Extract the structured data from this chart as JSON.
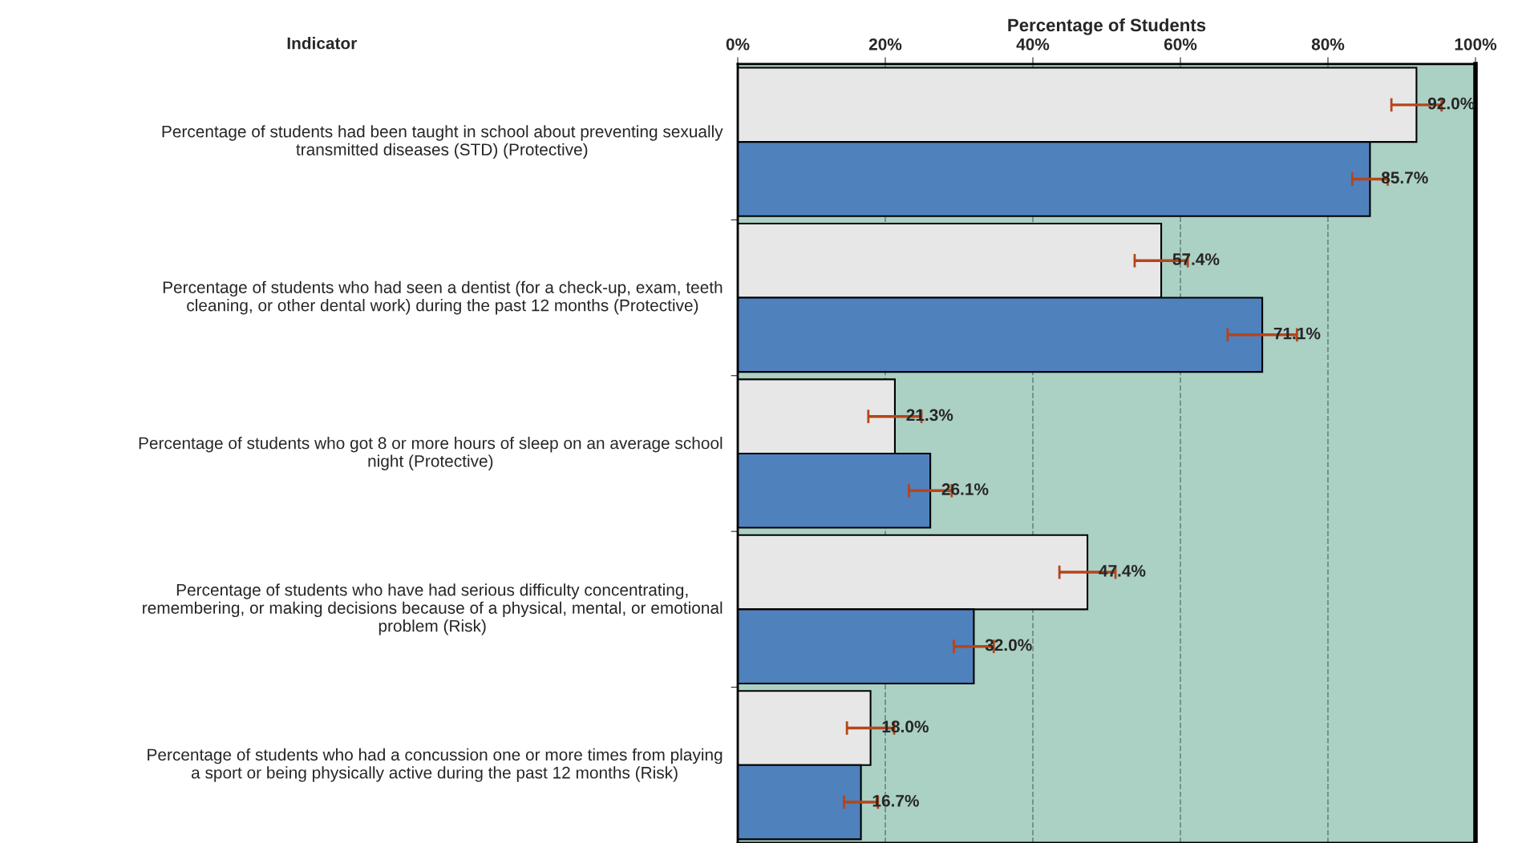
{
  "chart_data": {
    "type": "bar",
    "orientation": "horizontal",
    "xlabel": "Percentage of Students",
    "ylabel": "Indicator",
    "categories": [
      "Percentage of students had been taught in school about preventing sexually\ntransmitted diseases (STD) (Protective)",
      "Percentage of students who had seen a dentist (for a check-up, exam, teeth\ncleaning, or other dental work) during the past 12 months (Protective)",
      "Percentage of students who got 8 or more hours of sleep on an average school\nnight (Protective)",
      "Percentage of students who have had serious difficulty concentrating,\nremembering, or making decisions because of a physical, mental, or emotional\nproblem (Risk)",
      "Percentage of students who had a concussion one or more times from playing\na sport or being physically active during the past 12 months (Risk)"
    ],
    "series": [
      {
        "color": "#e7e7e7",
        "values": [
          92.0,
          57.4,
          21.3,
          47.4,
          18.0
        ],
        "errors": [
          3.4,
          3.6,
          3.6,
          3.8,
          3.2
        ],
        "value_labels": [
          "92.0%",
          "57.4%",
          "21.3%",
          "47.4%",
          "18.0%"
        ]
      },
      {
        "color": "#4f81bd",
        "values": [
          85.7,
          71.1,
          26.1,
          32.0,
          16.7
        ],
        "errors": [
          2.4,
          4.7,
          2.9,
          2.7,
          2.3
        ],
        "value_labels": [
          "85.7%",
          "71.1%",
          "26.1%",
          "32.0%",
          "16.7%"
        ]
      }
    ],
    "xlim": [
      0,
      100
    ],
    "xticks": [
      {
        "value": 0,
        "label": "0%"
      },
      {
        "value": 20,
        "label": "20%"
      },
      {
        "value": 40,
        "label": "40%"
      },
      {
        "value": 60,
        "label": "60%"
      },
      {
        "value": 80,
        "label": "80%"
      },
      {
        "value": 100,
        "label": "100%"
      }
    ],
    "grid": "x"
  }
}
